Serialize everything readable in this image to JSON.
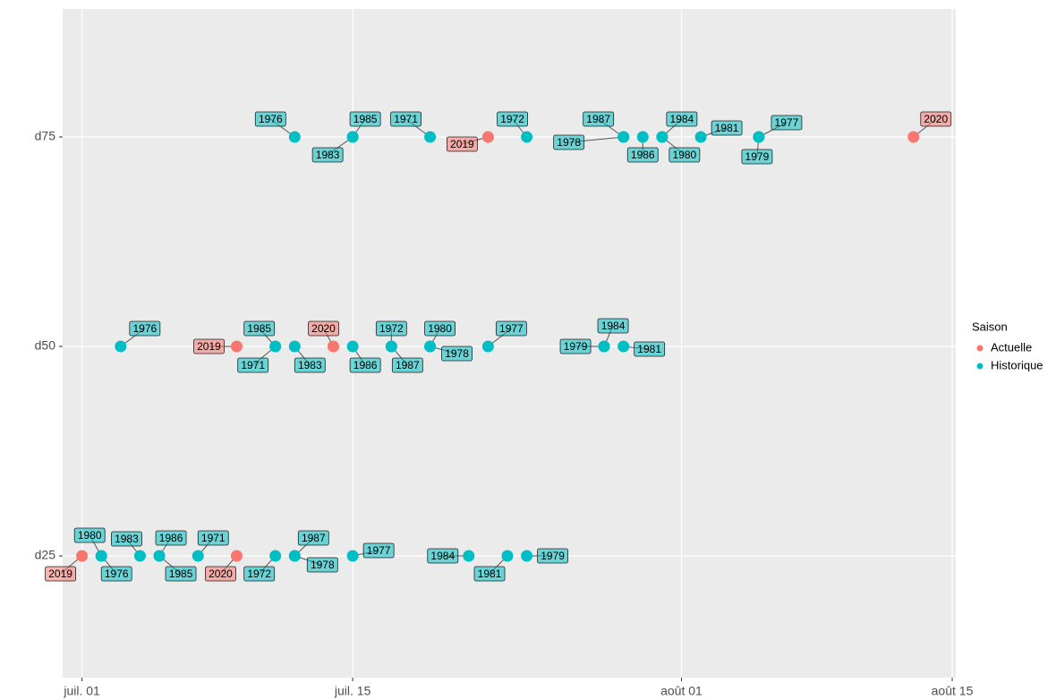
{
  "chart_data": {
    "type": "scatter",
    "categories": [
      "d25",
      "d50",
      "d75"
    ],
    "xlim": [
      "06-30",
      "08-15"
    ],
    "xticks": [
      {
        "value": "07-01",
        "label": "juil. 01"
      },
      {
        "value": "07-15",
        "label": "juil. 15"
      },
      {
        "value": "08-01",
        "label": "août 01"
      },
      {
        "value": "08-15",
        "label": "août 15"
      }
    ],
    "grid": true,
    "legend_title": "Saison",
    "legend": "right",
    "series": [
      {
        "name": "Actuelle",
        "color": "#F8766D",
        "x": [
          "07-01",
          "07-09",
          "07-09",
          "07-14",
          "07-22",
          "08-13"
        ],
        "y": [
          "d25",
          "d25",
          "d50",
          "d50",
          "d75",
          "d75"
        ],
        "labels": [
          "2019",
          "2020",
          "2019",
          "2020",
          "2019",
          "2020"
        ]
      },
      {
        "name": "Historique",
        "color": "#00BFC4",
        "x": [
          "07-02",
          "07-02",
          "07-04",
          "07-05",
          "07-05",
          "07-07",
          "07-11",
          "07-12",
          "07-12",
          "07-15",
          "07-21",
          "07-23",
          "07-24",
          "07-03",
          "07-11",
          "07-11",
          "07-12",
          "07-15",
          "07-17",
          "07-17",
          "07-19",
          "07-19",
          "07-22",
          "07-28",
          "07-28",
          "07-29",
          "07-12",
          "07-15",
          "07-15",
          "07-19",
          "07-24",
          "07-29",
          "07-29",
          "07-30",
          "07-31",
          "07-31",
          "08-02",
          "08-05",
          "08-05"
        ],
        "y": [
          "d25",
          "d25",
          "d25",
          "d25",
          "d25",
          "d25",
          "d25",
          "d25",
          "d25",
          "d25",
          "d25",
          "d25",
          "d25",
          "d50",
          "d50",
          "d50",
          "d50",
          "d50",
          "d50",
          "d50",
          "d50",
          "d50",
          "d50",
          "d50",
          "d50",
          "d50",
          "d75",
          "d75",
          "d75",
          "d75",
          "d75",
          "d75",
          "d75",
          "d75",
          "d75",
          "d75",
          "d75",
          "d75",
          "d75"
        ],
        "labels": [
          "1980",
          "1976",
          "1983",
          "1986",
          "1985",
          "1971",
          "1972",
          "1987",
          "1978",
          "1977",
          "1984",
          "1981",
          "1979",
          "1976",
          "1985",
          "1971",
          "1983",
          "1986",
          "1972",
          "1987",
          "1980",
          "1978",
          "1977",
          "1984",
          "1979",
          "1981",
          "1976",
          "1983",
          "1985",
          "1971",
          "1972",
          "1987",
          "1978",
          "1986",
          "1984",
          "1980",
          "1981",
          "1977",
          "1979"
        ]
      }
    ]
  }
}
